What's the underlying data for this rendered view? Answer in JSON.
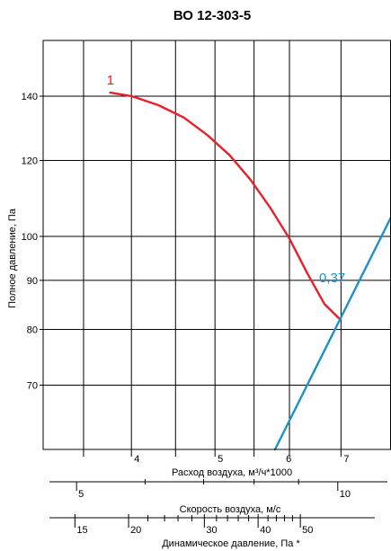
{
  "chart_data": {
    "type": "line",
    "title": "ВО 12-303-5",
    "ylabel": "Полное давление, Па",
    "y_scale": "log",
    "ylim": [
      60,
      160
    ],
    "y_ticks": [
      {
        "value": 70,
        "label": "70"
      },
      {
        "value": 80,
        "label": "80"
      },
      {
        "value": 90,
        "label": "90"
      },
      {
        "value": 100,
        "label": "100"
      },
      {
        "value": 120,
        "label": "120"
      },
      {
        "value": 140,
        "label": "140"
      }
    ],
    "x_scale": "log",
    "xlim": [
      3.16,
      8.0
    ],
    "x_grid": [
      3.52,
      4,
      4.5,
      5,
      5.55,
      6.1,
      7
    ],
    "flow_axis": {
      "label": "Расход воздуха, м³/ч*1000",
      "ticks": [
        {
          "value": 4,
          "label": "4"
        },
        {
          "value": 5,
          "label": "5"
        },
        {
          "value": 6,
          "label": "6"
        },
        {
          "value": 7,
          "label": "7"
        }
      ]
    },
    "velocity_axis": {
      "label": "Скорость воздуха, м/с",
      "ticks": [
        {
          "value": 5,
          "label": "5",
          "x": 3.455
        },
        {
          "value": 10,
          "label": "10",
          "x": 6.94
        }
      ],
      "minor_x": [
        4.15,
        4.85,
        5.55,
        6.25
      ]
    },
    "dynamic_axis": {
      "label": "Динамическое давление, Па *",
      "ticks": [
        {
          "value": 15,
          "label": "15",
          "x": 3.44
        },
        {
          "value": 20,
          "label": "20",
          "x": 3.97
        },
        {
          "value": 30,
          "label": "30",
          "x": 4.86
        },
        {
          "value": 40,
          "label": "40",
          "x": 5.61
        },
        {
          "value": 50,
          "label": "50",
          "x": 6.28
        }
      ],
      "minor_x": [
        4.18,
        4.37,
        4.53,
        4.7,
        5.02,
        5.17,
        5.32,
        5.47,
        5.76,
        5.89,
        6.02,
        6.15
      ]
    },
    "series": [
      {
        "name": "1",
        "color": "#e8202a",
        "points": [
          [
            3.78,
            141.2
          ],
          [
            4.0,
            140.0
          ],
          [
            4.3,
            137.0
          ],
          [
            4.6,
            133.0
          ],
          [
            4.9,
            127.5
          ],
          [
            5.2,
            121.5
          ],
          [
            5.5,
            114.5
          ],
          [
            5.8,
            107.0
          ],
          [
            6.1,
            99.5
          ],
          [
            6.4,
            91.5
          ],
          [
            6.7,
            85.0
          ],
          [
            6.96,
            82.2
          ]
        ]
      },
      {
        "name": "0,37",
        "color": "#1a93c8",
        "points": [
          [
            5.87,
            60
          ],
          [
            8.0,
            104.7
          ]
        ]
      }
    ]
  }
}
